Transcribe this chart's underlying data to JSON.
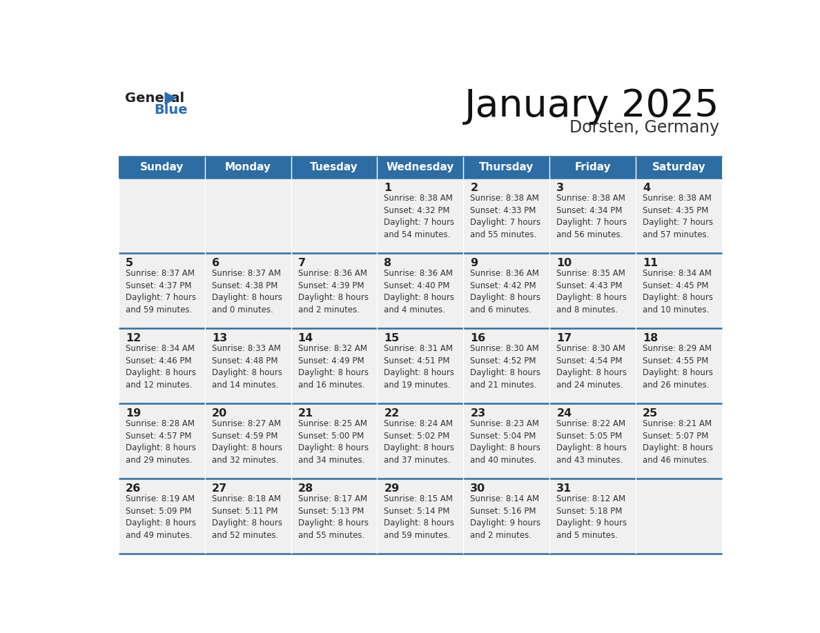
{
  "title": "January 2025",
  "subtitle": "Dorsten, Germany",
  "days_of_week": [
    "Sunday",
    "Monday",
    "Tuesday",
    "Wednesday",
    "Thursday",
    "Friday",
    "Saturday"
  ],
  "header_bg": "#2e6da4",
  "header_text": "#ffffff",
  "row_bg_light": "#f0f0f0",
  "row_bg_white": "#ffffff",
  "border_color": "#2e6da4",
  "day_num_color": "#222222",
  "info_color": "#333333",
  "title_color": "#111111",
  "subtitle_color": "#333333",
  "logo_general_color": "#222222",
  "logo_blue_color": "#2a6db5",
  "weeks": [
    [
      {
        "day": "",
        "info": ""
      },
      {
        "day": "",
        "info": ""
      },
      {
        "day": "",
        "info": ""
      },
      {
        "day": "1",
        "info": "Sunrise: 8:38 AM\nSunset: 4:32 PM\nDaylight: 7 hours\nand 54 minutes."
      },
      {
        "day": "2",
        "info": "Sunrise: 8:38 AM\nSunset: 4:33 PM\nDaylight: 7 hours\nand 55 minutes."
      },
      {
        "day": "3",
        "info": "Sunrise: 8:38 AM\nSunset: 4:34 PM\nDaylight: 7 hours\nand 56 minutes."
      },
      {
        "day": "4",
        "info": "Sunrise: 8:38 AM\nSunset: 4:35 PM\nDaylight: 7 hours\nand 57 minutes."
      }
    ],
    [
      {
        "day": "5",
        "info": "Sunrise: 8:37 AM\nSunset: 4:37 PM\nDaylight: 7 hours\nand 59 minutes."
      },
      {
        "day": "6",
        "info": "Sunrise: 8:37 AM\nSunset: 4:38 PM\nDaylight: 8 hours\nand 0 minutes."
      },
      {
        "day": "7",
        "info": "Sunrise: 8:36 AM\nSunset: 4:39 PM\nDaylight: 8 hours\nand 2 minutes."
      },
      {
        "day": "8",
        "info": "Sunrise: 8:36 AM\nSunset: 4:40 PM\nDaylight: 8 hours\nand 4 minutes."
      },
      {
        "day": "9",
        "info": "Sunrise: 8:36 AM\nSunset: 4:42 PM\nDaylight: 8 hours\nand 6 minutes."
      },
      {
        "day": "10",
        "info": "Sunrise: 8:35 AM\nSunset: 4:43 PM\nDaylight: 8 hours\nand 8 minutes."
      },
      {
        "day": "11",
        "info": "Sunrise: 8:34 AM\nSunset: 4:45 PM\nDaylight: 8 hours\nand 10 minutes."
      }
    ],
    [
      {
        "day": "12",
        "info": "Sunrise: 8:34 AM\nSunset: 4:46 PM\nDaylight: 8 hours\nand 12 minutes."
      },
      {
        "day": "13",
        "info": "Sunrise: 8:33 AM\nSunset: 4:48 PM\nDaylight: 8 hours\nand 14 minutes."
      },
      {
        "day": "14",
        "info": "Sunrise: 8:32 AM\nSunset: 4:49 PM\nDaylight: 8 hours\nand 16 minutes."
      },
      {
        "day": "15",
        "info": "Sunrise: 8:31 AM\nSunset: 4:51 PM\nDaylight: 8 hours\nand 19 minutes."
      },
      {
        "day": "16",
        "info": "Sunrise: 8:30 AM\nSunset: 4:52 PM\nDaylight: 8 hours\nand 21 minutes."
      },
      {
        "day": "17",
        "info": "Sunrise: 8:30 AM\nSunset: 4:54 PM\nDaylight: 8 hours\nand 24 minutes."
      },
      {
        "day": "18",
        "info": "Sunrise: 8:29 AM\nSunset: 4:55 PM\nDaylight: 8 hours\nand 26 minutes."
      }
    ],
    [
      {
        "day": "19",
        "info": "Sunrise: 8:28 AM\nSunset: 4:57 PM\nDaylight: 8 hours\nand 29 minutes."
      },
      {
        "day": "20",
        "info": "Sunrise: 8:27 AM\nSunset: 4:59 PM\nDaylight: 8 hours\nand 32 minutes."
      },
      {
        "day": "21",
        "info": "Sunrise: 8:25 AM\nSunset: 5:00 PM\nDaylight: 8 hours\nand 34 minutes."
      },
      {
        "day": "22",
        "info": "Sunrise: 8:24 AM\nSunset: 5:02 PM\nDaylight: 8 hours\nand 37 minutes."
      },
      {
        "day": "23",
        "info": "Sunrise: 8:23 AM\nSunset: 5:04 PM\nDaylight: 8 hours\nand 40 minutes."
      },
      {
        "day": "24",
        "info": "Sunrise: 8:22 AM\nSunset: 5:05 PM\nDaylight: 8 hours\nand 43 minutes."
      },
      {
        "day": "25",
        "info": "Sunrise: 8:21 AM\nSunset: 5:07 PM\nDaylight: 8 hours\nand 46 minutes."
      }
    ],
    [
      {
        "day": "26",
        "info": "Sunrise: 8:19 AM\nSunset: 5:09 PM\nDaylight: 8 hours\nand 49 minutes."
      },
      {
        "day": "27",
        "info": "Sunrise: 8:18 AM\nSunset: 5:11 PM\nDaylight: 8 hours\nand 52 minutes."
      },
      {
        "day": "28",
        "info": "Sunrise: 8:17 AM\nSunset: 5:13 PM\nDaylight: 8 hours\nand 55 minutes."
      },
      {
        "day": "29",
        "info": "Sunrise: 8:15 AM\nSunset: 5:14 PM\nDaylight: 8 hours\nand 59 minutes."
      },
      {
        "day": "30",
        "info": "Sunrise: 8:14 AM\nSunset: 5:16 PM\nDaylight: 9 hours\nand 2 minutes."
      },
      {
        "day": "31",
        "info": "Sunrise: 8:12 AM\nSunset: 5:18 PM\nDaylight: 9 hours\nand 5 minutes."
      },
      {
        "day": "",
        "info": ""
      }
    ]
  ]
}
